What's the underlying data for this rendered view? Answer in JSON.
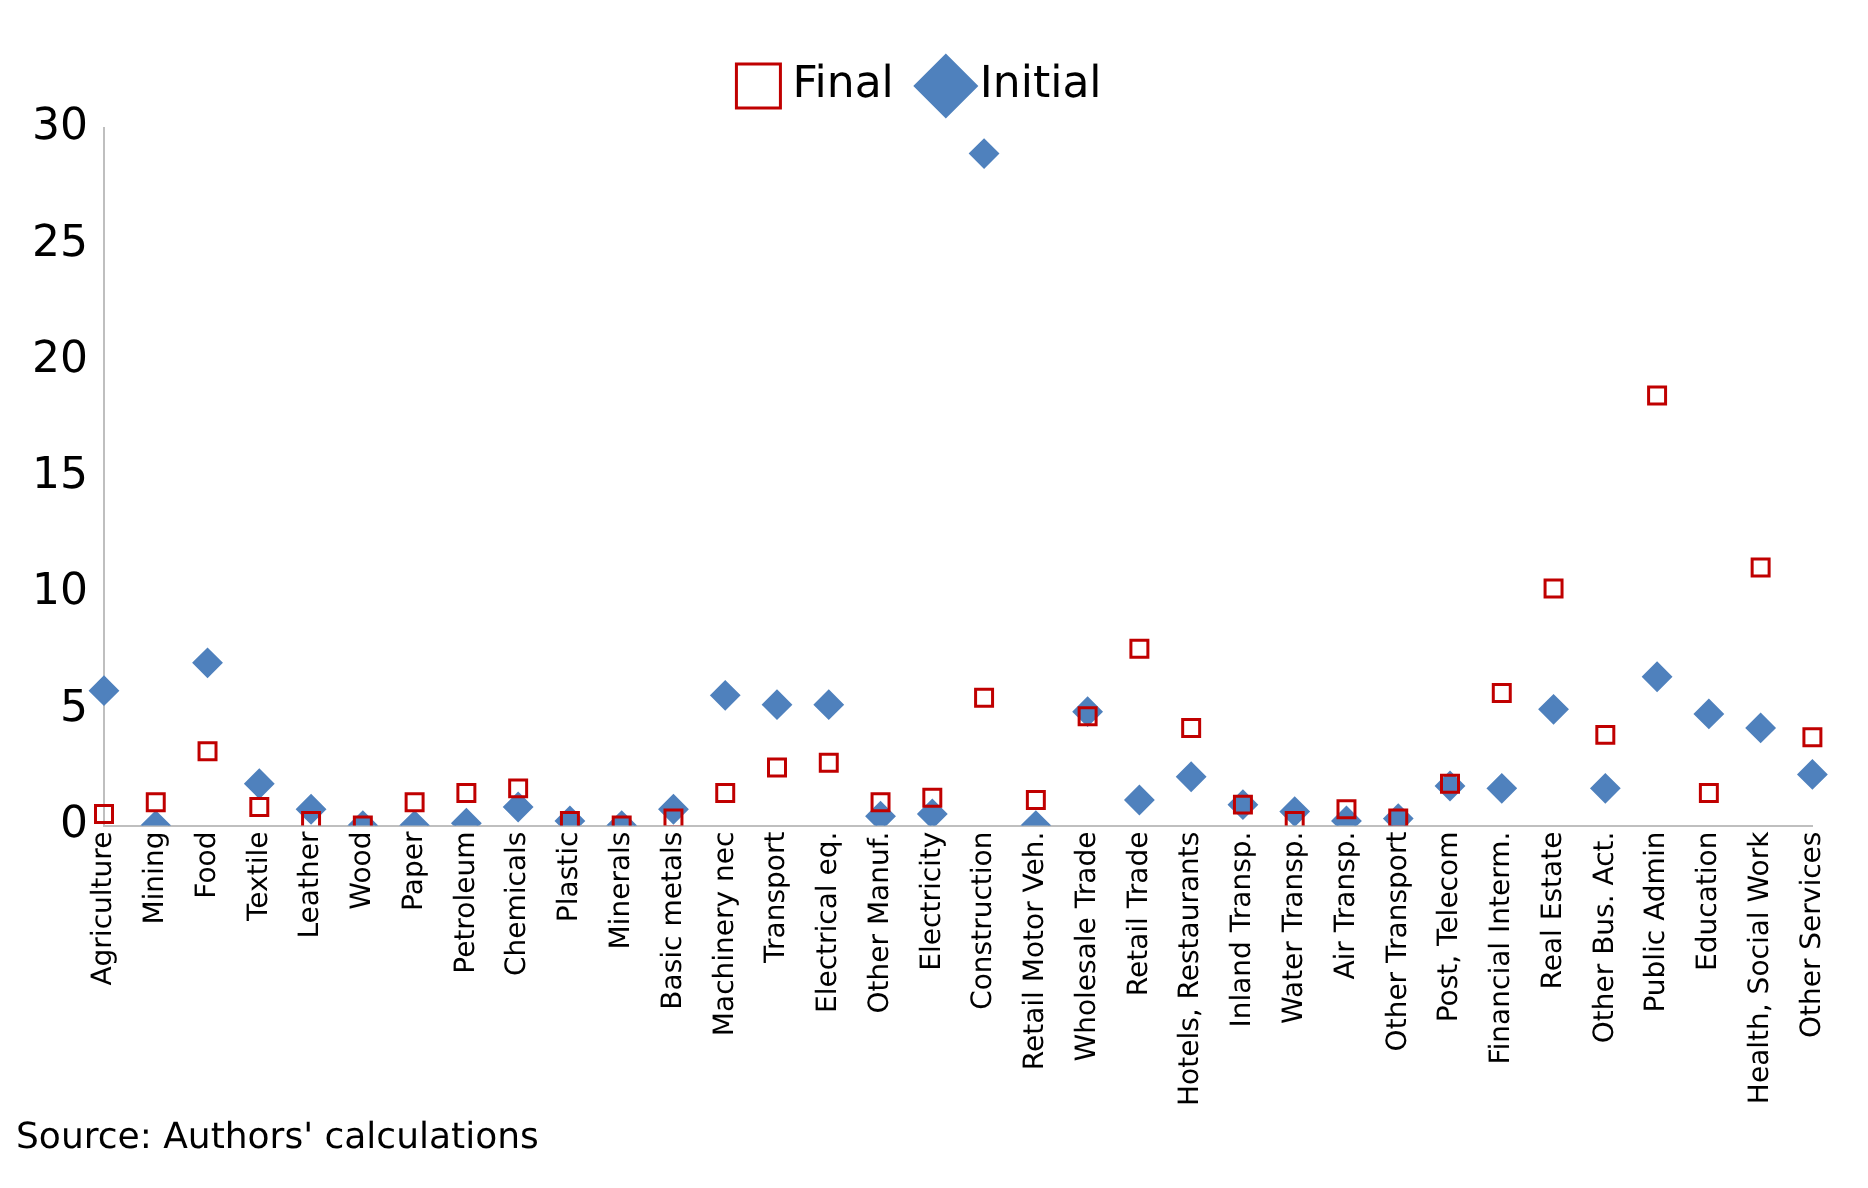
{
  "chart_data": {
    "type": "scatter",
    "categories": [
      "Agriculture",
      "Mining",
      "Food",
      "Textile",
      "Leather",
      "Wood",
      "Paper",
      "Petroleum",
      "Chemicals",
      "Plastic",
      "Minerals",
      "Basic metals",
      "Machinery nec",
      "Transport",
      "Electrical eq.",
      "Other Manuf.",
      "Electricity",
      "Construction",
      "Retail Motor Veh.",
      "Wholesale Trade",
      "Retail Trade",
      "Hotels, Restaurants",
      "Inland Transp.",
      "Water Transp.",
      "Air Transp.",
      "Other Transport",
      "Post, Telecom",
      "Financial Interm.",
      "Real Estate",
      "Other Bus. Act.",
      "Public Admin",
      "Education",
      "Health, Social Work",
      "Other Services"
    ],
    "series": [
      {
        "name": "Initial",
        "color": "#4f81bd",
        "marker": "diamond",
        "values": [
          5.8,
          0,
          7.0,
          1.8,
          0.7,
          0,
          0,
          0.1,
          0.8,
          0.2,
          0,
          0.7,
          5.6,
          5.2,
          5.2,
          0.4,
          0.5,
          28.9,
          0,
          4.9,
          1.1,
          2.1,
          0.9,
          0.6,
          0.2,
          0.3,
          1.7,
          1.6,
          5.0,
          1.6,
          6.4,
          4.8,
          4.2,
          2.2
        ]
      },
      {
        "name": "Final",
        "color": "#c00000",
        "marker": "square",
        "values": [
          0.5,
          1.0,
          3.2,
          0.8,
          0.2,
          0,
          1.0,
          1.4,
          1.6,
          0.2,
          0,
          0.3,
          1.4,
          2.5,
          2.7,
          1.0,
          1.2,
          5.5,
          1.1,
          4.7,
          7.6,
          4.2,
          0.9,
          0.2,
          0.7,
          0.3,
          1.8,
          5.7,
          10.2,
          3.9,
          18.5,
          1.4,
          11.1,
          3.8
        ]
      }
    ],
    "ylim": [
      0,
      30
    ],
    "yticks": [
      0,
      5,
      10,
      15,
      20,
      25,
      30
    ],
    "grid": false,
    "legend": "top",
    "annotations": [
      "Source: Authors' calculations"
    ]
  }
}
